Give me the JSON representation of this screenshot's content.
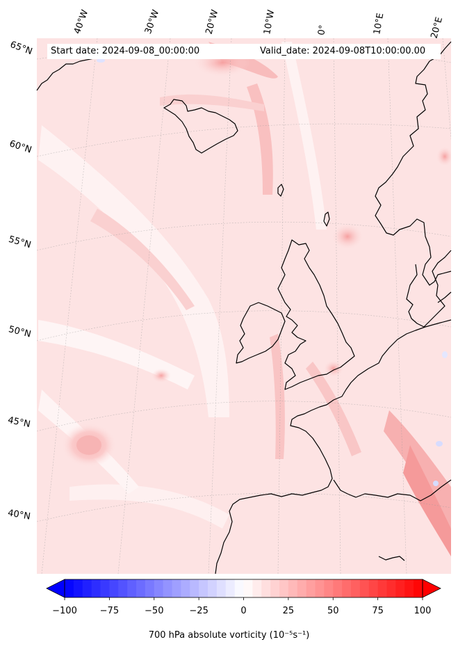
{
  "map": {
    "start_date": "Start date: 2024-09-08_00:00:00",
    "valid_date": "Valid_date: 2024-09-08T10:00:00.00",
    "lon_labels": [
      "40°W",
      "30°W",
      "20°W",
      "10°W",
      "0°",
      "10°E",
      "20°E"
    ],
    "lat_labels": [
      "65°N",
      "60°N",
      "55°N",
      "50°N",
      "45°N",
      "40°N"
    ],
    "region": "North Atlantic and Western Europe",
    "projection": "conic",
    "field": "700 hPa absolute vorticity",
    "gridlines": true,
    "coastlines": true
  },
  "colorbar": {
    "title": "700 hPa absolute vorticity (10⁻⁵s⁻¹)",
    "ticks": [
      "−100",
      "−75",
      "−50",
      "−25",
      "0",
      "25",
      "50",
      "75",
      "100"
    ],
    "range": [
      -100,
      100
    ],
    "extend": "both",
    "colormap": "bwr",
    "low_color": "#0000ff",
    "mid_color": "#ffffff",
    "high_color": "#ff0000"
  }
}
